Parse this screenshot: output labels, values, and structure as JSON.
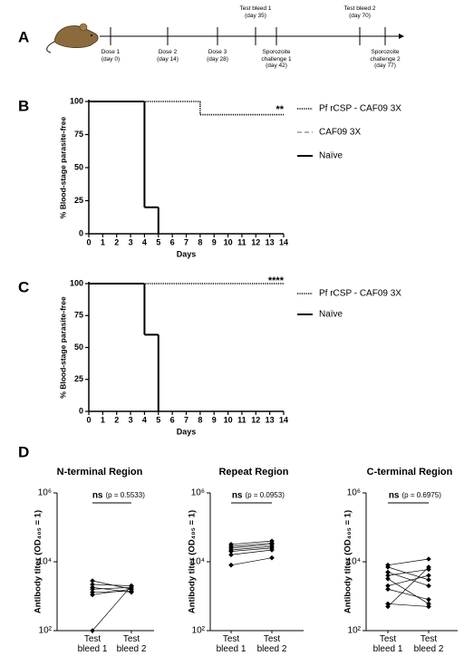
{
  "panels": [
    "A",
    "B",
    "C",
    "D"
  ],
  "timeline": {
    "events": [
      "Dose 1\n(day 0)",
      "Dose 2\n(day 14)",
      "Dose 3\n(day 28)",
      "Test bleed 1\n(day 35)",
      "Sporozoite\nchallenge 1\n(day 42)",
      "Test bleed 2\n(day 70)",
      "Sporozoite\nchallenge 2\n(day 77)"
    ]
  },
  "chart_data": [
    {
      "type": "step",
      "xlabel": "Days",
      "ylabel": "% Blood-stage parasite-free",
      "annotation": "**",
      "xlim": [
        0,
        14
      ],
      "xticks": [
        0,
        1,
        2,
        3,
        4,
        5,
        6,
        7,
        8,
        9,
        10,
        11,
        12,
        13,
        14
      ],
      "ylim": [
        0,
        100
      ],
      "yticks": [
        0,
        25,
        50,
        75,
        100
      ],
      "series": [
        {
          "name": "Pf rCSP - CAF09 3X",
          "color": "#000000",
          "dash": "dotted",
          "x": [
            0,
            8,
            14
          ],
          "values": [
            100,
            90,
            90
          ]
        },
        {
          "name": "CAF09 3X",
          "color": "#999999",
          "dash": "dashed",
          "x": [
            0,
            4,
            5
          ],
          "values": [
            100,
            20,
            0
          ]
        },
        {
          "name": "Naïve",
          "color": "#000000",
          "dash": "solid",
          "x": [
            0,
            4,
            5
          ],
          "values": [
            100,
            20,
            0
          ]
        }
      ]
    },
    {
      "type": "step",
      "xlabel": "Days",
      "ylabel": "% Blood-stage parasite-free",
      "annotation": "****",
      "xlim": [
        0,
        14
      ],
      "xticks": [
        0,
        1,
        2,
        3,
        4,
        5,
        6,
        7,
        8,
        9,
        10,
        11,
        12,
        13,
        14
      ],
      "ylim": [
        0,
        100
      ],
      "yticks": [
        0,
        25,
        50,
        75,
        100
      ],
      "series": [
        {
          "name": "Pf rCSP - CAF09 3X",
          "color": "#000000",
          "dash": "dotted",
          "x": [
            0,
            14
          ],
          "values": [
            100,
            100
          ]
        },
        {
          "name": "Naïve",
          "color": "#000000",
          "dash": "solid",
          "x": [
            0,
            4,
            5
          ],
          "values": [
            100,
            60,
            0
          ]
        }
      ]
    },
    {
      "type": "paired",
      "title": "N-terminal Region",
      "ylabel": "Antibody titer (OD₄₀₅ = 1)",
      "log": true,
      "annotation": {
        "label": "ns",
        "text": "(p = 0.5533)"
      },
      "categories": [
        "Test\nbleed 1",
        "Test\nbleed 2"
      ],
      "color": "#000000",
      "ylim": [
        100,
        1000000
      ],
      "yticks": [
        {
          "value": 100,
          "label": "10²"
        },
        {
          "value": 10000,
          "label": "10⁴"
        },
        {
          "value": 1000000,
          "label": "10⁶"
        }
      ],
      "series": [
        {
          "values": [
            2800,
            1600
          ]
        },
        {
          "values": [
            2200,
            2000
          ]
        },
        {
          "values": [
            1800,
            1300
          ]
        },
        {
          "values": [
            1600,
            1800
          ]
        },
        {
          "values": [
            1300,
            1400
          ]
        },
        {
          "values": [
            1100,
            1600
          ]
        },
        {
          "values": [
            100,
            2000
          ]
        }
      ]
    },
    {
      "type": "paired",
      "title": "Repeat Region",
      "ylabel": "Antibody titer (OD₄₀₅ = 1)",
      "log": true,
      "annotation": {
        "label": "ns",
        "text": "(p = 0.0953)"
      },
      "categories": [
        "Test\nbleed 1",
        "Test\nbleed 2"
      ],
      "color": "#000000",
      "ylim": [
        100,
        1000000
      ],
      "yticks": [
        {
          "value": 100,
          "label": "10²"
        },
        {
          "value": 10000,
          "label": "10⁴"
        },
        {
          "value": 1000000,
          "label": "10⁶"
        }
      ],
      "series": [
        {
          "values": [
            32000,
            40000
          ]
        },
        {
          "values": [
            28000,
            35000
          ]
        },
        {
          "values": [
            25000,
            32000
          ]
        },
        {
          "values": [
            22000,
            28000
          ]
        },
        {
          "values": [
            20000,
            25000
          ]
        },
        {
          "values": [
            16000,
            22000
          ]
        },
        {
          "values": [
            8000,
            13000
          ]
        }
      ]
    },
    {
      "type": "paired",
      "title": "C-terminal Region",
      "ylabel": "Antibody titer (OD₄₀₅ = 1)",
      "log": true,
      "annotation": {
        "label": "ns",
        "text": "(p = 0.6975)"
      },
      "categories": [
        "Test\nbleed 1",
        "Test\nbleed 2"
      ],
      "color": "#000000",
      "ylim": [
        100,
        1000000
      ],
      "yticks": [
        {
          "value": 100,
          "label": "10²"
        },
        {
          "value": 10000,
          "label": "10⁴"
        },
        {
          "value": 1000000,
          "label": "10⁶"
        }
      ],
      "series": [
        {
          "values": [
            8000,
            12000
          ]
        },
        {
          "values": [
            7000,
            3000
          ]
        },
        {
          "values": [
            5000,
            2000
          ]
        },
        {
          "values": [
            4000,
            6000
          ]
        },
        {
          "values": [
            3200,
            600
          ]
        },
        {
          "values": [
            2000,
            4000
          ]
        },
        {
          "values": [
            1600,
            800
          ]
        },
        {
          "values": [
            600,
            500
          ]
        },
        {
          "values": [
            500,
            7000
          ]
        }
      ]
    }
  ]
}
